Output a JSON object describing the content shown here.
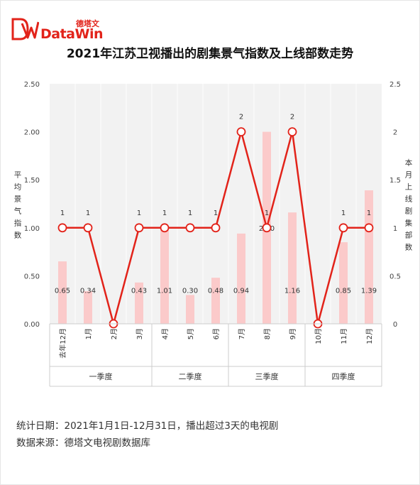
{
  "brand": {
    "name_cn": "德塔文",
    "name_en": "DataWin",
    "logo_mark": "dw-logo-mark"
  },
  "title": "2021年江苏卫视播出的剧集景气指数及上线部数走势",
  "colors": {
    "line": "#e2231a",
    "bar": "#fbcaca",
    "panel": "#f2f2f2",
    "axis_text": "#444444"
  },
  "chart_data": {
    "type": "bar+line",
    "categories": [
      "去年12月",
      "1月",
      "2月",
      "3月",
      "4月",
      "5月",
      "6月",
      "7月",
      "8月",
      "9月",
      "10月",
      "11月",
      "12月"
    ],
    "groups": [
      {
        "label": "一季度",
        "span": 4
      },
      {
        "label": "二季度",
        "span": 3
      },
      {
        "label": "三季度",
        "span": 3
      },
      {
        "label": "四季度",
        "span": 3
      }
    ],
    "series": [
      {
        "kind": "bar",
        "axis": "left",
        "values": [
          0.65,
          0.34,
          0,
          0.43,
          1.01,
          0.3,
          0.48,
          0.94,
          2.0,
          1.16,
          0,
          0.85,
          1.39
        ],
        "labels": [
          "0.65",
          "0.34",
          "",
          "0.43",
          "1.01",
          "0.30",
          "0.48",
          "0.94",
          "2.00",
          "1.16",
          "",
          "0.85",
          "1.39"
        ]
      },
      {
        "kind": "line",
        "axis": "right",
        "values": [
          1,
          1,
          0,
          1,
          1,
          1,
          1,
          2,
          1,
          2,
          0,
          1,
          1
        ],
        "labels": [
          "1",
          "1",
          "",
          "1",
          "1",
          "1",
          "1",
          "2",
          "1",
          "2",
          "",
          "1",
          "1"
        ]
      }
    ],
    "left_axis": {
      "label": "平均景气指数",
      "ylim": [
        0,
        2.5
      ],
      "ticks": [
        "0.00",
        "0.50",
        "1.00",
        "1.50",
        "2.00",
        "2.50"
      ]
    },
    "right_axis": {
      "label": "本月上线剧集部数",
      "ylim": [
        0,
        2.5
      ],
      "ticks": [
        "0",
        "0.5",
        "1",
        "1.5",
        "2",
        "2.5"
      ]
    },
    "grid": "vertical"
  },
  "footer": {
    "stats_date": "统计日期：2021年1月1日-12月31日，播出超过3天的电视剧",
    "source": "数据来源：德塔文电视剧数据库"
  }
}
